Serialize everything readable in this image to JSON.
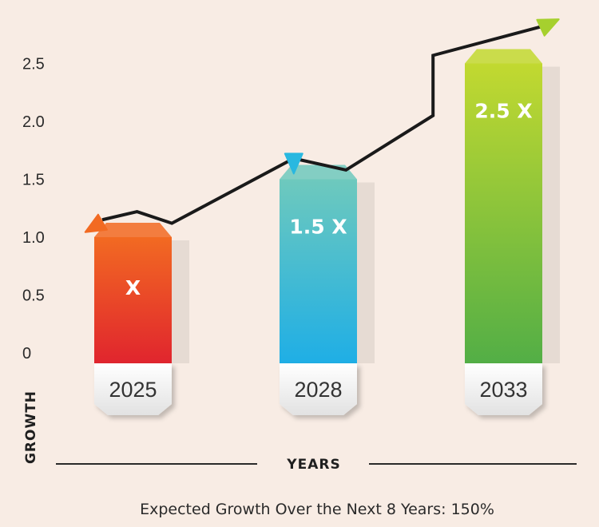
{
  "chart_data": {
    "type": "bar",
    "title": "",
    "xlabel": "YEARS",
    "ylabel": "GROWTH",
    "caption": "Expected Growth Over the Next 8 Years: 150%",
    "y_ticks": [
      "0",
      "0.5",
      "1.0",
      "1.5",
      "2.0",
      "2.5"
    ],
    "ylim": [
      0,
      2.5
    ],
    "categories": [
      "2025",
      "2028",
      "2033"
    ],
    "values": [
      1.0,
      1.5,
      2.5
    ],
    "bar_labels": [
      "X",
      "1.5 X",
      "2.5 X"
    ],
    "colors": {
      "bar_2025": [
        "#f26a22",
        "#e0242e"
      ],
      "bar_2028": [
        "#6ec9bd",
        "#1eaee6"
      ],
      "bar_2033": [
        "#c2d930",
        "#52ae46"
      ],
      "trend_line": "#1a1a1a",
      "background": "#f8ece4"
    },
    "trend_line": {
      "description": "upward growth arrow",
      "points": [
        [
          0.0,
          1.15
        ],
        [
          0.2,
          1.22
        ],
        [
          0.4,
          1.12
        ],
        [
          1.1,
          1.68
        ],
        [
          1.4,
          1.58
        ],
        [
          1.9,
          2.05
        ],
        [
          1.9,
          2.57
        ],
        [
          2.55,
          2.83
        ]
      ],
      "marker_colors": [
        "#f26a22",
        "#29b8e0",
        "#a6d02e"
      ]
    }
  }
}
